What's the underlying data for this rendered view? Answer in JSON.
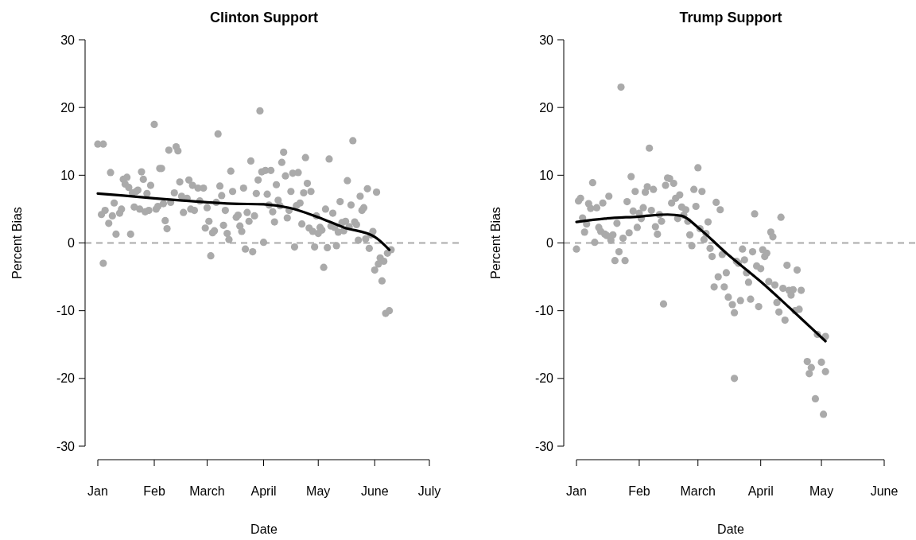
{
  "chart_data": [
    {
      "type": "scatter",
      "title": "Clinton Support",
      "xlabel": "Date",
      "ylabel": "Percent Bias",
      "xlim": [
        "--01-01",
        "--07-01"
      ],
      "ylim": [
        -30,
        30
      ],
      "yticks": [
        -30,
        -20,
        -10,
        0,
        10,
        20,
        30
      ],
      "xticks": [
        {
          "value": "--01-01",
          "label": "Jan"
        },
        {
          "value": "--02-01",
          "label": "Feb"
        },
        {
          "value": "--03-01",
          "label": "March"
        },
        {
          "value": "--04-01",
          "label": "April"
        },
        {
          "value": "--05-01",
          "label": "May"
        },
        {
          "value": "--06-01",
          "label": "June"
        },
        {
          "value": "--07-01",
          "label": "July"
        }
      ],
      "ref_lines": [
        {
          "axis": "y",
          "value": 0,
          "color": "#aaaaaa",
          "line_style": "dashed"
        }
      ],
      "series": [
        {
          "marker": "circle",
          "color": "#aaaaaa",
          "x": [
            "--01-01",
            "--01-03",
            "--01-04",
            "--01-04",
            "--01-05",
            "--01-07",
            "--01-08",
            "--01-09",
            "--01-10",
            "--01-11",
            "--01-13",
            "--01-14",
            "--01-15",
            "--01-16",
            "--01-17",
            "--01-18",
            "--01-19",
            "--01-20",
            "--01-21",
            "--01-22",
            "--01-23",
            "--01-24",
            "--01-25",
            "--01-26",
            "--01-27",
            "--01-28",
            "--01-29",
            "--01-30",
            "--02-01",
            "--02-02",
            "--02-03",
            "--02-04",
            "--02-05",
            "--02-06",
            "--02-07",
            "--02-08",
            "--02-09",
            "--02-10",
            "--02-12",
            "--02-13",
            "--02-14",
            "--02-15",
            "--02-16",
            "--02-17",
            "--02-19",
            "--02-20",
            "--02-21",
            "--02-22",
            "--02-23",
            "--02-25",
            "--02-26",
            "--02-28",
            "--02-29",
            "--03-01",
            "--03-02",
            "--03-03",
            "--03-04",
            "--03-05",
            "--03-06",
            "--03-07",
            "--03-08",
            "--03-09",
            "--03-10",
            "--03-11",
            "--03-12",
            "--03-13",
            "--03-14",
            "--03-15",
            "--03-17",
            "--03-18",
            "--03-19",
            "--03-20",
            "--03-21",
            "--03-22",
            "--03-23",
            "--03-24",
            "--03-25",
            "--03-26",
            "--03-27",
            "--03-28",
            "--03-29",
            "--03-30",
            "--03-31",
            "--04-01",
            "--04-02",
            "--04-03",
            "--04-04",
            "--04-05",
            "--04-06",
            "--04-07",
            "--04-08",
            "--04-09",
            "--04-10",
            "--04-11",
            "--04-12",
            "--04-13",
            "--04-14",
            "--04-15",
            "--04-16",
            "--04-17",
            "--04-18",
            "--04-19",
            "--04-20",
            "--04-21",
            "--04-22",
            "--04-23",
            "--04-24",
            "--04-25",
            "--04-26",
            "--04-27",
            "--04-28",
            "--04-29",
            "--04-30",
            "--05-01",
            "--05-02",
            "--05-03",
            "--05-04",
            "--05-05",
            "--05-06",
            "--05-07",
            "--05-08",
            "--05-09",
            "--05-10",
            "--05-11",
            "--05-12",
            "--05-13",
            "--05-14",
            "--05-15",
            "--05-16",
            "--05-17",
            "--05-18",
            "--05-19",
            "--05-20",
            "--05-21",
            "--05-22",
            "--05-23",
            "--05-24",
            "--05-25",
            "--05-26",
            "--05-27",
            "--05-28",
            "--05-29",
            "--05-30",
            "--05-31",
            "--06-01",
            "--06-02",
            "--06-03",
            "--06-04",
            "--06-05",
            "--06-06",
            "--06-07",
            "--06-08",
            "--06-09",
            "--06-10"
          ],
          "values": [
            14.6,
            4.2,
            14.6,
            -3,
            4.8,
            2.9,
            10.4,
            4,
            5.9,
            1.3,
            4.4,
            5,
            9.4,
            8.7,
            9.7,
            8.2,
            1.3,
            7.4,
            5.3,
            7.6,
            7.8,
            5,
            10.5,
            9.4,
            4.6,
            7.3,
            4.8,
            8.5,
            17.5,
            5,
            5.4,
            11,
            11,
            5.8,
            3.3,
            2.1,
            13.7,
            6,
            7.4,
            14.2,
            13.6,
            9,
            6.9,
            4.5,
            6.6,
            9.3,
            5,
            8.5,
            4.8,
            8.1,
            6.2,
            8.1,
            2.2,
            5.2,
            3.2,
            -1.9,
            1.5,
            1.8,
            6,
            16.1,
            8.4,
            7,
            2.6,
            4.8,
            1.4,
            0.5,
            10.6,
            7.6,
            3.8,
            4.1,
            2.5,
            1.7,
            8.1,
            -0.9,
            4.5,
            3.2,
            12.1,
            -1.3,
            4,
            7.3,
            9.3,
            19.5,
            10.5,
            0.1,
            10.7,
            7.2,
            5.6,
            10.7,
            4.6,
            3.1,
            8.6,
            6.3,
            5.5,
            11.9,
            13.4,
            9.9,
            3.7,
            4.8,
            7.6,
            10.3,
            -0.6,
            5.5,
            10.4,
            5.9,
            2.8,
            7.4,
            12.6,
            8.8,
            2.2,
            7.6,
            1.7,
            -0.6,
            4,
            1.4,
            2.3,
            1.9,
            -3.6,
            5,
            -0.7,
            12.4,
            2.5,
            4.4,
            2.3,
            -0.4,
            1.6,
            6.1,
            3,
            1.8,
            3.2,
            9.2,
            2.4,
            5.6,
            15.1,
            3.1,
            2.7,
            0.4,
            6.9,
            4.8,
            5.2,
            0.6,
            8,
            -0.8,
            1.2,
            1.7,
            -4,
            7.5,
            -3.1,
            -2.2,
            -5.6,
            -2.7,
            -10.4,
            -1.5,
            -10,
            -1
          ]
        },
        {
          "type": "line",
          "color": "#000000",
          "x": [
            "--01-01",
            "--01-15",
            "--02-01",
            "--02-15",
            "--03-01",
            "--03-15",
            "--04-01",
            "--04-15",
            "--05-01",
            "--05-15",
            "--06-01",
            "--06-09"
          ],
          "values": [
            7.3,
            7,
            6.6,
            6.3,
            6,
            5.8,
            5.7,
            5.2,
            3.8,
            2.3,
            0.9,
            -1
          ]
        }
      ]
    },
    {
      "type": "scatter",
      "title": "Trump Support",
      "xlabel": "Date",
      "ylabel": "Percent Bias",
      "xlim": [
        "--01-01",
        "--06-01"
      ],
      "ylim": [
        -30,
        30
      ],
      "yticks": [
        -30,
        -20,
        -10,
        0,
        10,
        20,
        30
      ],
      "xticks": [
        {
          "value": "--01-01",
          "label": "Jan"
        },
        {
          "value": "--02-01",
          "label": "Feb"
        },
        {
          "value": "--03-01",
          "label": "March"
        },
        {
          "value": "--04-01",
          "label": "April"
        },
        {
          "value": "--05-01",
          "label": "May"
        },
        {
          "value": "--06-01",
          "label": "June"
        }
      ],
      "ref_lines": [
        {
          "axis": "y",
          "value": 0,
          "color": "#aaaaaa",
          "line_style": "dashed"
        }
      ],
      "series": [
        {
          "marker": "circle",
          "color": "#aaaaaa",
          "x": [
            "--01-01",
            "--01-02",
            "--01-03",
            "--01-04",
            "--01-05",
            "--01-06",
            "--01-07",
            "--01-08",
            "--01-09",
            "--01-10",
            "--01-11",
            "--01-12",
            "--01-13",
            "--01-14",
            "--01-15",
            "--01-16",
            "--01-17",
            "--01-18",
            "--01-19",
            "--01-20",
            "--01-21",
            "--01-22",
            "--01-23",
            "--01-24",
            "--01-25",
            "--01-26",
            "--01-27",
            "--01-28",
            "--01-29",
            "--01-30",
            "--01-31",
            "--02-01",
            "--02-02",
            "--02-03",
            "--02-04",
            "--02-05",
            "--02-06",
            "--02-07",
            "--02-08",
            "--02-09",
            "--02-10",
            "--02-11",
            "--02-12",
            "--02-13",
            "--02-14",
            "--02-15",
            "--02-16",
            "--02-17",
            "--02-18",
            "--02-19",
            "--02-20",
            "--02-21",
            "--02-22",
            "--02-23",
            "--02-24",
            "--02-25",
            "--02-26",
            "--02-27",
            "--02-28",
            "--02-29",
            "--03-01",
            "--03-02",
            "--03-03",
            "--03-04",
            "--03-05",
            "--03-06",
            "--03-07",
            "--03-08",
            "--03-09",
            "--03-10",
            "--03-11",
            "--03-12",
            "--03-13",
            "--03-14",
            "--03-15",
            "--03-16",
            "--03-19",
            "--03-18",
            "--03-19",
            "--03-20",
            "--03-21",
            "--03-22",
            "--03-23",
            "--03-24",
            "--03-25",
            "--03-26",
            "--03-27",
            "--03-28",
            "--03-29",
            "--03-30",
            "--03-31",
            "--04-01",
            "--04-02",
            "--04-03",
            "--04-04",
            "--04-05",
            "--04-06",
            "--04-07",
            "--04-08",
            "--04-09",
            "--04-10",
            "--04-11",
            "--04-12",
            "--04-13",
            "--04-14",
            "--04-15",
            "--04-16",
            "--04-17",
            "--04-18",
            "--04-19",
            "--04-20",
            "--04-21",
            "--04-24",
            "--04-25",
            "--04-26",
            "--04-28",
            "--04-29",
            "--05-01",
            "--05-02",
            "--05-03",
            "--05-03"
          ],
          "values": [
            -0.9,
            6.2,
            6.6,
            3.7,
            1.6,
            2.8,
            5.8,
            5.1,
            8.9,
            0.1,
            5.2,
            2.3,
            1.7,
            5.9,
            1.3,
            1.1,
            6.9,
            0.4,
            1.2,
            -2.6,
            2.9,
            -1.3,
            23,
            0.7,
            -2.6,
            6.1,
            1.5,
            9.8,
            4.7,
            7.6,
            2.3,
            4.4,
            3.6,
            5.2,
            7.5,
            8.3,
            14,
            4.8,
            7.9,
            2.4,
            1.3,
            4.2,
            3.2,
            -9,
            8.5,
            9.6,
            9.5,
            5.9,
            8.8,
            6.6,
            3.6,
            7.1,
            5.3,
            4.1,
            4.9,
            3.2,
            1.2,
            -0.4,
            7.9,
            5.4,
            11.1,
            2.1,
            7.6,
            0.5,
            1.4,
            3.1,
            -0.8,
            -2,
            -6.5,
            6,
            -5,
            4.9,
            -1.7,
            -6.5,
            -4.4,
            -8,
            -20,
            -9.1,
            -10.3,
            -2.7,
            -3,
            -8.5,
            -0.9,
            -2.5,
            -4.4,
            -5.8,
            -8.3,
            -1.3,
            4.3,
            -3.4,
            -9.4,
            -3.8,
            -1,
            -2,
            -1.5,
            -5.7,
            1.6,
            0.9,
            -6.2,
            -8.8,
            -10.2,
            3.8,
            -6.7,
            -11.4,
            -3.3,
            -7,
            -7.7,
            -6.9,
            -10,
            -4,
            -9.8,
            -7,
            -17.5,
            -19.3,
            -18.4,
            -23,
            -13.5,
            -17.6,
            -25.3,
            -19,
            -13.8
          ]
        },
        {
          "type": "line",
          "color": "#000000",
          "x": [
            "--01-01",
            "--01-15",
            "--02-01",
            "--02-15",
            "--02-22",
            "--03-01",
            "--03-15",
            "--04-01",
            "--04-15",
            "--05-03"
          ],
          "values": [
            3.1,
            3.6,
            3.9,
            4.2,
            4,
            2.3,
            -1.5,
            -5.7,
            -9.5,
            -14.5
          ]
        }
      ]
    }
  ]
}
